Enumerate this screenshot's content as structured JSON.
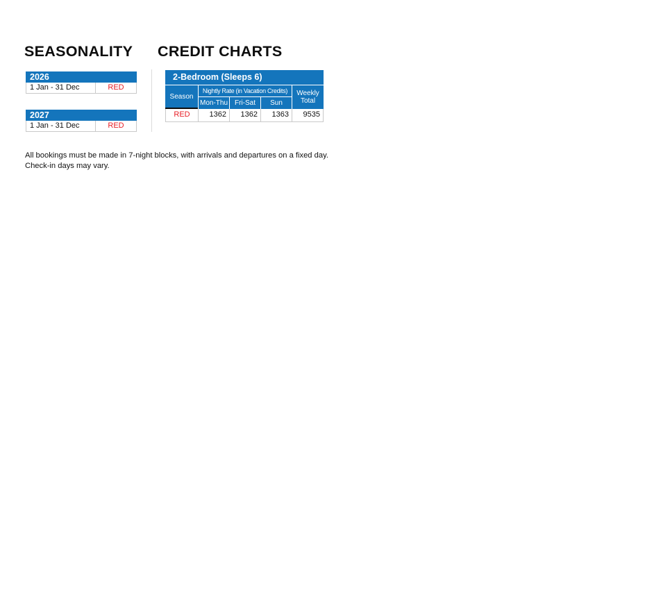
{
  "colors": {
    "header_blue": "#1475BC",
    "season_red": "#E81E25",
    "cell_border_gray": "#C9C9C9",
    "divider_gray": "#DBDBDB",
    "text_black": "#111111"
  },
  "seasonality": {
    "heading": "SEASONALITY",
    "tables": [
      {
        "year": "2026",
        "date_range": "1 Jan - 31 Dec",
        "season": "RED"
      },
      {
        "year": "2027",
        "date_range": "1 Jan - 31 Dec",
        "season": "RED"
      }
    ]
  },
  "credit_charts": {
    "heading": "CREDIT CHARTS",
    "table": {
      "title": "2-Bedroom (Sleeps 6)",
      "header": {
        "season": "Season",
        "group": "Nightly Rate (in Vacation Credits)",
        "days": [
          "Mon-Thu",
          "Fri-Sat",
          "Sun"
        ],
        "weekly_total": "Weekly Total"
      },
      "row": {
        "season": "RED",
        "values": [
          "1362",
          "1362",
          "1363"
        ],
        "weekly_total": "9535"
      }
    }
  },
  "footnote": {
    "line1": "All bookings must be made in 7-night blocks, with arrivals and departures on a fixed day.",
    "line2": "Check-in days may vary."
  }
}
